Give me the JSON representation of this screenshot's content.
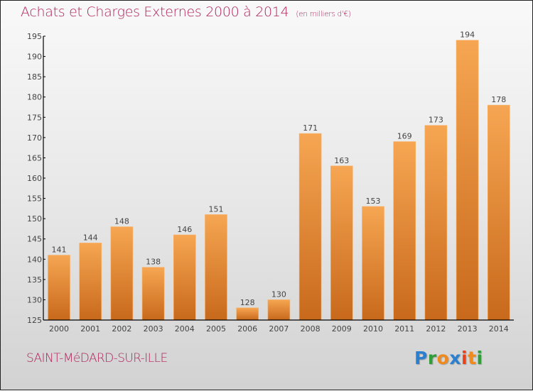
{
  "header": {
    "title": "Achats et Charges Externes 2000 à 2014",
    "unit_note": "(en milliers d'€)"
  },
  "footer": {
    "city": "SAINT-MéDARD-SUR-ILLE",
    "logo": {
      "letters": [
        "P",
        "r",
        "o",
        "x",
        "i",
        "t",
        "i"
      ],
      "colors": [
        "#2a7fd0",
        "#2f9e3a",
        "#f08a1c",
        "#2a7fd0",
        "#e8431c",
        "#f08a1c",
        "#2f9e3a"
      ]
    }
  },
  "colors": {
    "title": "#b0245a",
    "bar_top": "#f6a652",
    "bar_bottom": "#c8691b",
    "axis": "#000000"
  },
  "chart_data": {
    "type": "bar",
    "title": "Achats et Charges Externes 2000 à 2014",
    "subtitle": "(en milliers d'€)",
    "xlabel": "",
    "ylabel": "",
    "categories": [
      "2000",
      "2001",
      "2002",
      "2003",
      "2004",
      "2005",
      "2006",
      "2007",
      "2008",
      "2009",
      "2010",
      "2011",
      "2012",
      "2013",
      "2014"
    ],
    "values": [
      141,
      144,
      148,
      138,
      146,
      151,
      128,
      130,
      171,
      163,
      153,
      169,
      173,
      194,
      178
    ],
    "ylim": [
      125,
      195
    ],
    "yticks": [
      125,
      130,
      135,
      140,
      145,
      150,
      155,
      160,
      165,
      170,
      175,
      180,
      185,
      190,
      195
    ],
    "grid": false,
    "legend": "none",
    "data_labels": true
  }
}
